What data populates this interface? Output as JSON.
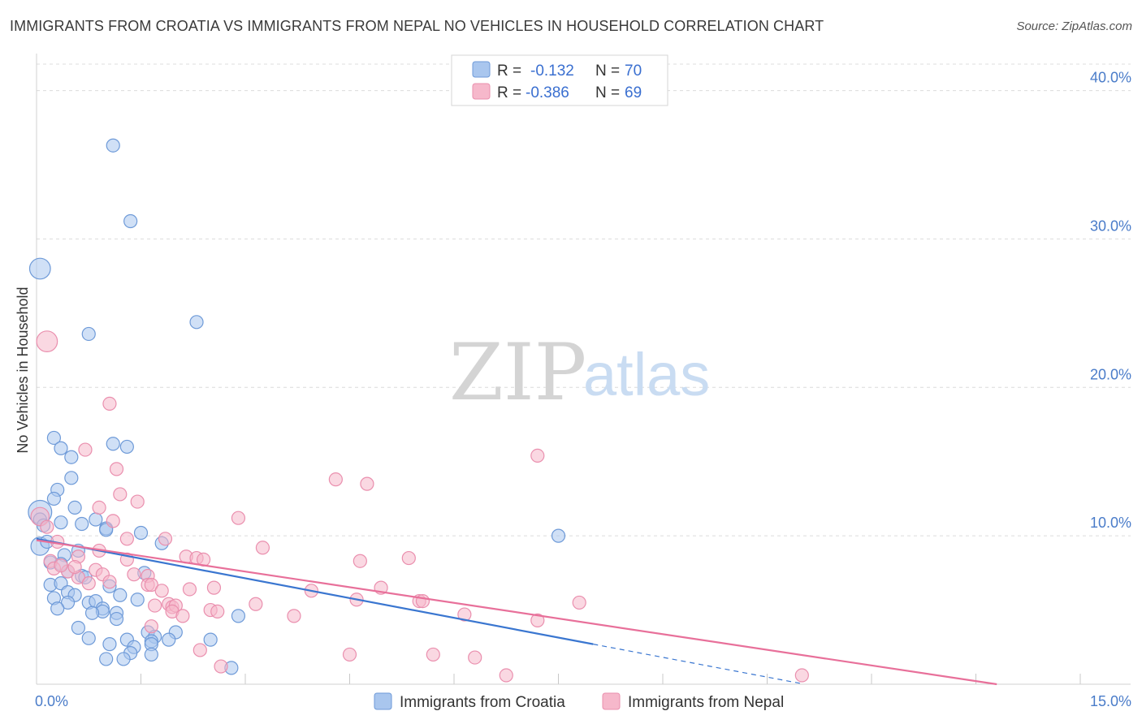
{
  "title": "IMMIGRANTS FROM CROATIA VS IMMIGRANTS FROM NEPAL NO VEHICLES IN HOUSEHOLD CORRELATION CHART",
  "source": "Source: ZipAtlas.com",
  "watermark": {
    "zip": "ZIP",
    "atlas": "atlas"
  },
  "legend": {
    "rows": [
      {
        "r_label": "R =",
        "r_value": "-0.132",
        "n_label": "N =",
        "n_value": "70"
      },
      {
        "r_label": "R =",
        "r_value": "-0.386",
        "n_label": "N =",
        "n_value": "69"
      }
    ]
  },
  "bottom_legend": [
    "Immigrants from Croatia",
    "Immigrants from Nepal"
  ],
  "colors": {
    "croatia_fill": "#a9c6ee",
    "croatia_stroke": "#6e9ad8",
    "croatia_line": "#3a76d0",
    "nepal_fill": "#f6b8cb",
    "nepal_stroke": "#ea8fae",
    "nepal_line": "#e8709a",
    "grid": "#dcdcdc",
    "tick_text": "#4a7cc9"
  },
  "chart_data": {
    "type": "scatter",
    "title": "IMMIGRANTS FROM CROATIA VS IMMIGRANTS FROM NEPAL NO VEHICLES IN HOUSEHOLD CORRELATION CHART",
    "xlabel": "",
    "ylabel": "No Vehicles in Household",
    "xlim": [
      0,
      15
    ],
    "ylim": [
      0,
      42
    ],
    "x_tick_labels": [
      "0.0%",
      "15.0%"
    ],
    "y_ticks": [
      10,
      20,
      30,
      40
    ],
    "y_tick_labels": [
      "10.0%",
      "20.0%",
      "30.0%",
      "40.0%"
    ],
    "grid": true,
    "legend_position": "top-center",
    "series": [
      {
        "name": "Immigrants from Croatia",
        "r": -0.132,
        "n": 70,
        "trend": {
          "x0": 0.0,
          "y0": 9.8,
          "x1": 8.0,
          "y1": 2.7,
          "dashed_to_x": 11.0
        },
        "points": [
          [
            0.05,
            28.0,
            1.6
          ],
          [
            1.1,
            36.3,
            1
          ],
          [
            1.35,
            31.2,
            1
          ],
          [
            0.75,
            23.6,
            1
          ],
          [
            2.3,
            24.4,
            1
          ],
          [
            0.25,
            16.6,
            1
          ],
          [
            0.35,
            15.9,
            1
          ],
          [
            0.5,
            15.3,
            1
          ],
          [
            1.1,
            16.2,
            1
          ],
          [
            1.3,
            16.0,
            1
          ],
          [
            0.5,
            13.9,
            1
          ],
          [
            0.3,
            13.1,
            1
          ],
          [
            0.25,
            12.5,
            1
          ],
          [
            0.55,
            11.9,
            1
          ],
          [
            0.05,
            11.6,
            1.8
          ],
          [
            0.05,
            11.1,
            1
          ],
          [
            0.35,
            10.9,
            1
          ],
          [
            0.65,
            10.8,
            1
          ],
          [
            0.85,
            11.1,
            1
          ],
          [
            1.0,
            10.5,
            1
          ],
          [
            0.1,
            10.7,
            1
          ],
          [
            1.5,
            10.2,
            1
          ],
          [
            1.8,
            9.5,
            1
          ],
          [
            0.05,
            9.3,
            1.4
          ],
          [
            0.6,
            9.0,
            1
          ],
          [
            0.4,
            8.7,
            1
          ],
          [
            0.2,
            8.2,
            1
          ],
          [
            0.65,
            7.3,
            1
          ],
          [
            0.7,
            7.2,
            1
          ],
          [
            1.55,
            7.5,
            1
          ],
          [
            0.2,
            6.7,
            1
          ],
          [
            0.35,
            6.8,
            1
          ],
          [
            0.45,
            6.2,
            1
          ],
          [
            0.55,
            6.0,
            1
          ],
          [
            1.05,
            6.6,
            1
          ],
          [
            0.25,
            5.8,
            1
          ],
          [
            0.45,
            5.5,
            1
          ],
          [
            0.75,
            5.5,
            1
          ],
          [
            0.85,
            5.6,
            1
          ],
          [
            0.95,
            5.1,
            1
          ],
          [
            0.95,
            4.9,
            1
          ],
          [
            0.8,
            4.8,
            1
          ],
          [
            1.15,
            4.8,
            1
          ],
          [
            1.15,
            4.4,
            1
          ],
          [
            1.45,
            5.7,
            1
          ],
          [
            2.9,
            4.6,
            1
          ],
          [
            0.6,
            3.8,
            1
          ],
          [
            1.6,
            3.5,
            1
          ],
          [
            2.0,
            3.5,
            1
          ],
          [
            0.75,
            3.1,
            1
          ],
          [
            1.3,
            3.0,
            1
          ],
          [
            1.7,
            3.2,
            1
          ],
          [
            1.9,
            3.0,
            1
          ],
          [
            1.65,
            2.9,
            1
          ],
          [
            2.5,
            3.0,
            1
          ],
          [
            1.05,
            2.7,
            1
          ],
          [
            1.4,
            2.5,
            1
          ],
          [
            1.65,
            2.7,
            1
          ],
          [
            1.35,
            2.1,
            1
          ],
          [
            1.65,
            2.0,
            1
          ],
          [
            1.0,
            1.7,
            1
          ],
          [
            1.25,
            1.7,
            1
          ],
          [
            2.8,
            1.1,
            1
          ],
          [
            7.5,
            10.0,
            1
          ],
          [
            1.0,
            10.4,
            1
          ],
          [
            0.15,
            9.6,
            1
          ],
          [
            0.35,
            8.1,
            1
          ],
          [
            0.45,
            7.6,
            1
          ],
          [
            1.2,
            6.0,
            1
          ],
          [
            0.3,
            5.1,
            1
          ]
        ]
      },
      {
        "name": "Immigrants from Nepal",
        "r": -0.386,
        "n": 69,
        "trend": {
          "x0": 0.0,
          "y0": 9.7,
          "x1": 13.8,
          "y1": 0.0
        },
        "points": [
          [
            0.15,
            23.1,
            1.6
          ],
          [
            1.05,
            18.9,
            1
          ],
          [
            0.7,
            15.8,
            1
          ],
          [
            1.15,
            14.5,
            1
          ],
          [
            7.2,
            15.4,
            1
          ],
          [
            4.3,
            13.8,
            1
          ],
          [
            4.75,
            13.5,
            1
          ],
          [
            1.2,
            12.8,
            1
          ],
          [
            1.45,
            12.3,
            1
          ],
          [
            0.9,
            11.9,
            1
          ],
          [
            0.05,
            11.3,
            1.4
          ],
          [
            1.1,
            11.0,
            1
          ],
          [
            2.9,
            11.2,
            1
          ],
          [
            0.15,
            10.6,
            1
          ],
          [
            1.3,
            9.8,
            1
          ],
          [
            1.85,
            9.8,
            1
          ],
          [
            3.25,
            9.2,
            1
          ],
          [
            0.9,
            9.0,
            1
          ],
          [
            0.6,
            8.6,
            1
          ],
          [
            1.3,
            8.4,
            1
          ],
          [
            2.15,
            8.6,
            1
          ],
          [
            2.3,
            8.5,
            1
          ],
          [
            2.4,
            8.4,
            1
          ],
          [
            4.65,
            8.3,
            1
          ],
          [
            5.35,
            8.5,
            1
          ],
          [
            0.2,
            8.3,
            1
          ],
          [
            0.25,
            7.8,
            1
          ],
          [
            0.45,
            7.6,
            1
          ],
          [
            0.6,
            7.2,
            1
          ],
          [
            0.85,
            7.7,
            1
          ],
          [
            0.95,
            7.4,
            1
          ],
          [
            1.4,
            7.4,
            1
          ],
          [
            1.6,
            7.3,
            1
          ],
          [
            0.75,
            6.8,
            1
          ],
          [
            1.6,
            6.7,
            1
          ],
          [
            1.65,
            6.7,
            1
          ],
          [
            1.8,
            6.3,
            1
          ],
          [
            2.2,
            6.4,
            1
          ],
          [
            2.55,
            6.5,
            1
          ],
          [
            3.95,
            6.3,
            1
          ],
          [
            4.95,
            6.5,
            1
          ],
          [
            4.6,
            5.7,
            1
          ],
          [
            5.5,
            5.6,
            1
          ],
          [
            5.55,
            5.6,
            1
          ],
          [
            3.15,
            5.4,
            1
          ],
          [
            1.7,
            5.3,
            1
          ],
          [
            1.9,
            5.4,
            1
          ],
          [
            1.95,
            5.2,
            1
          ],
          [
            2.0,
            5.3,
            1
          ],
          [
            1.95,
            4.9,
            1
          ],
          [
            2.1,
            4.6,
            1
          ],
          [
            2.5,
            5.0,
            1
          ],
          [
            2.6,
            4.9,
            1
          ],
          [
            3.7,
            4.6,
            1
          ],
          [
            6.15,
            4.7,
            1
          ],
          [
            7.8,
            5.5,
            1
          ],
          [
            7.2,
            4.3,
            1
          ],
          [
            1.65,
            3.9,
            1
          ],
          [
            2.35,
            2.3,
            1
          ],
          [
            4.5,
            2.0,
            1
          ],
          [
            5.7,
            2.0,
            1
          ],
          [
            6.3,
            1.8,
            1
          ],
          [
            2.65,
            1.2,
            1
          ],
          [
            6.75,
            0.6,
            1
          ],
          [
            11.0,
            0.6,
            1
          ],
          [
            0.35,
            8.0,
            1
          ],
          [
            0.55,
            7.9,
            1
          ],
          [
            1.05,
            6.9,
            1
          ],
          [
            0.3,
            9.6,
            1
          ]
        ]
      }
    ]
  }
}
